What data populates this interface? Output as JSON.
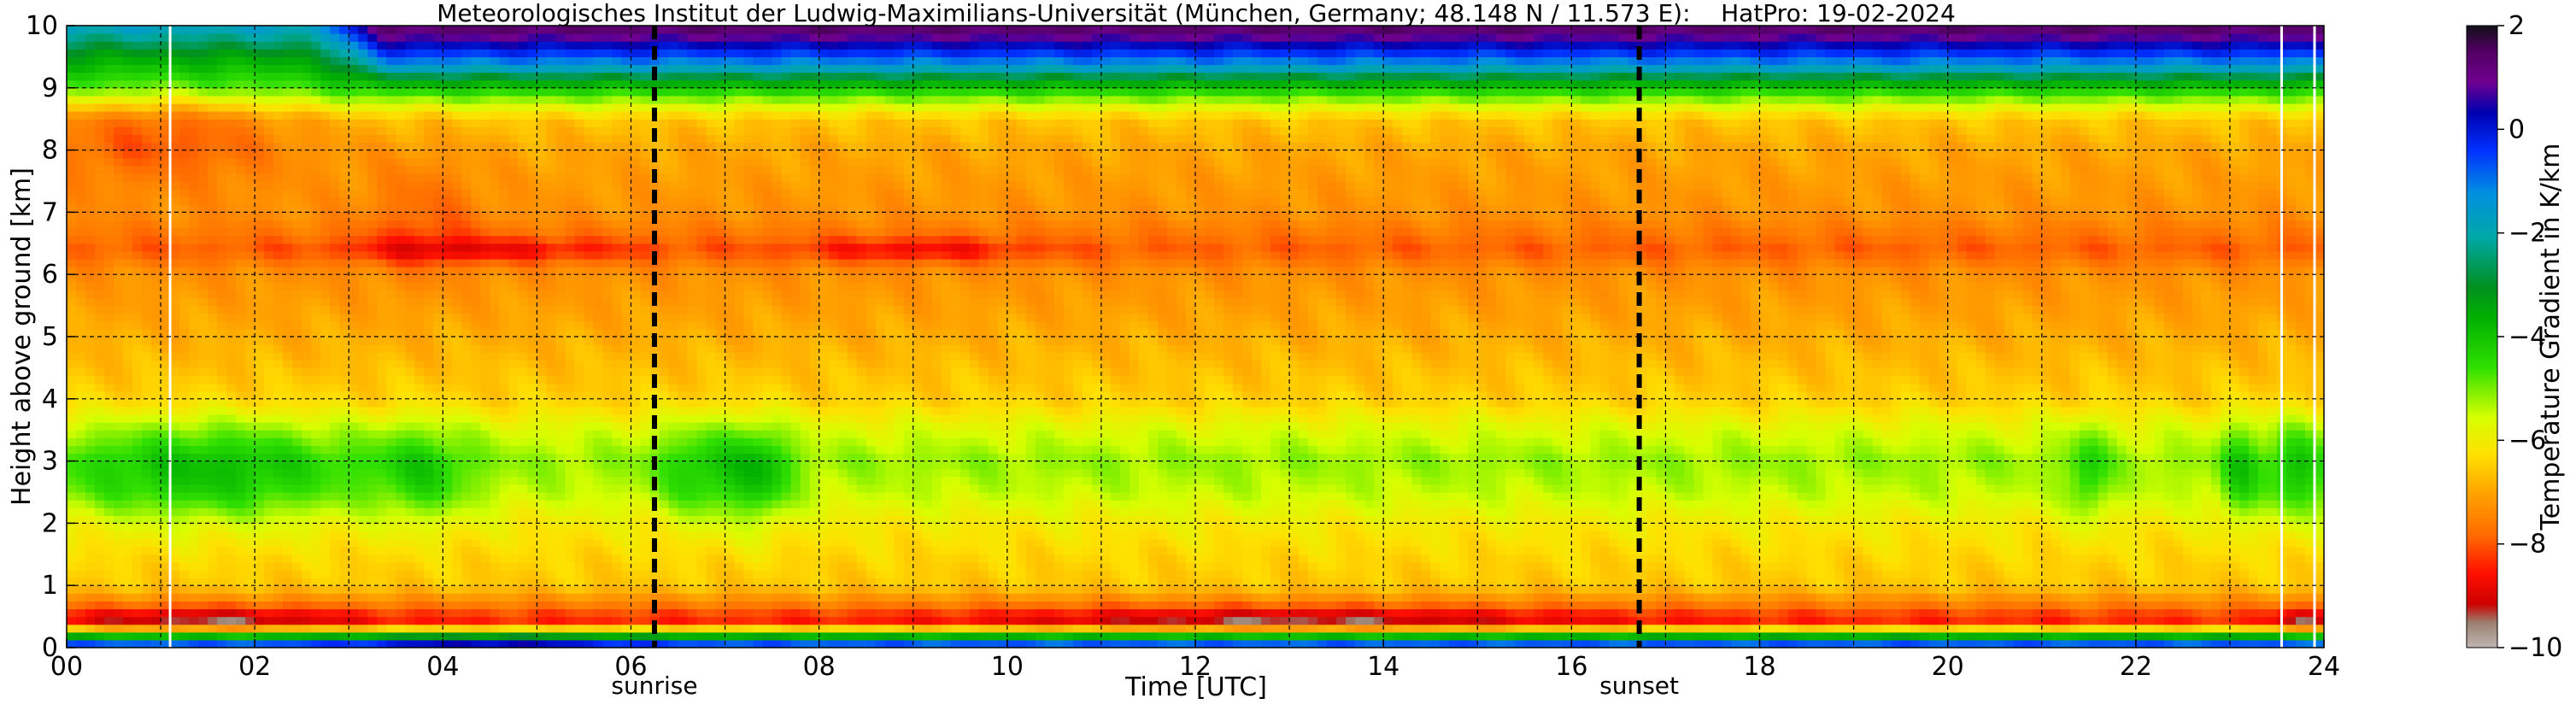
{
  "chart_data": {
    "type": "heatmap",
    "title": "Meteorologisches Institut der Ludwig-Maximilians-Universität (München, Germany; 48.148 N / 11.573 E):    HatPro: 19-02-2024",
    "xlabel": "Time [UTC]",
    "ylabel": "Height above ground [km]",
    "xlim": [
      0,
      24
    ],
    "ylim": [
      0,
      10
    ],
    "x_ticks": [
      "00",
      "02",
      "04",
      "06",
      "08",
      "10",
      "12",
      "14",
      "16",
      "18",
      "20",
      "22",
      "24"
    ],
    "x_tick_values": [
      0,
      2,
      4,
      6,
      8,
      10,
      12,
      14,
      16,
      18,
      20,
      22,
      24
    ],
    "y_ticks": [
      "0",
      "1",
      "2",
      "3",
      "4",
      "5",
      "6",
      "7",
      "8",
      "9",
      "10"
    ],
    "y_tick_values": [
      0,
      1,
      2,
      3,
      4,
      5,
      6,
      7,
      8,
      9,
      10
    ],
    "grid": true,
    "colorbar": {
      "label": "Temperature Gradient in K/km",
      "range": [
        -10,
        2
      ],
      "ticks": [
        "2",
        "0",
        "−2",
        "−4",
        "−6",
        "−8",
        "−10"
      ],
      "tick_values": [
        2,
        0,
        -2,
        -4,
        -6,
        -8,
        -10
      ]
    },
    "markers": [
      {
        "label": "sunrise",
        "time": 6.25
      },
      {
        "label": "sunset",
        "time": 16.72
      }
    ],
    "missing_data_times": [
      1.1,
      23.55,
      23.9
    ],
    "profile": {
      "heights_km": [
        0.05,
        0.25,
        0.45,
        0.7,
        1.0,
        1.5,
        2.0,
        2.5,
        3.0,
        3.5,
        4.0,
        5.0,
        6.0,
        6.4,
        7.0,
        8.0,
        8.5,
        9.0,
        9.5,
        10.0
      ],
      "gradient_K_per_km": [
        -3.0,
        -5.5,
        -8.6,
        -7.6,
        -6.6,
        -6.4,
        -6.1,
        -5.5,
        -5.2,
        -5.7,
        -6.5,
        -6.9,
        -7.3,
        -8.0,
        -7.3,
        -7.0,
        -6.6,
        -4.5,
        -3.3,
        -1.6
      ]
    }
  }
}
